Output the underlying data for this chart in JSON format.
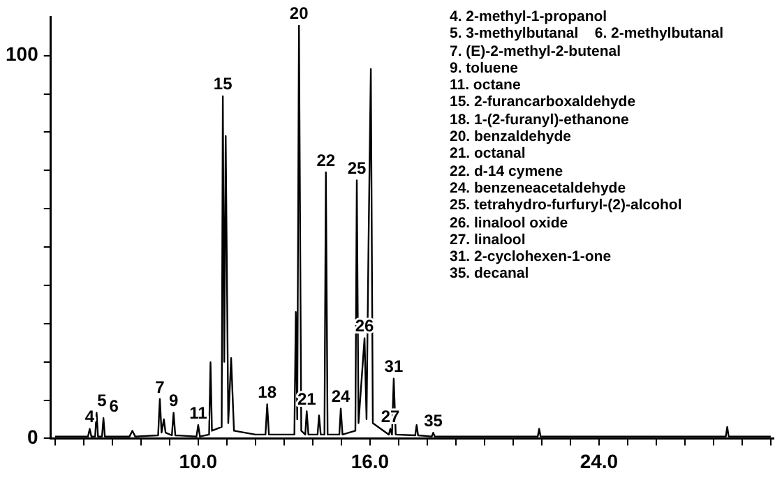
{
  "chart_data": {
    "type": "line",
    "x": [
      5.0,
      6.15,
      6.21,
      6.27,
      6.4,
      6.45,
      6.5,
      6.64,
      6.69,
      6.74,
      7.6,
      7.7,
      7.8,
      8.6,
      8.66,
      8.72,
      8.8,
      8.86,
      9.08,
      9.14,
      9.2,
      9.94,
      10.0,
      10.06,
      10.38,
      10.43,
      10.48,
      10.82,
      10.86,
      10.91,
      10.96,
      11.05,
      11.15,
      11.25,
      12.0,
      12.35,
      12.41,
      12.47,
      13.36,
      13.41,
      13.46,
      13.52,
      13.6,
      13.74,
      13.79,
      13.85,
      14.17,
      14.22,
      14.28,
      14.41,
      14.46,
      14.52,
      14.93,
      14.98,
      15.04,
      15.49,
      15.54,
      15.6,
      15.81,
      15.88,
      15.95,
      16.03,
      16.1,
      16.66,
      16.71,
      16.77,
      16.83,
      16.9,
      17.58,
      17.63,
      17.68,
      18.16,
      18.21,
      18.26,
      21.86,
      21.91,
      21.96,
      28.43,
      28.48,
      28.53,
      30.0
    ],
    "series": [
      {
        "color": "#000000",
        "values": [
          0.5,
          0.5,
          2.5,
          0.5,
          0.5,
          6.7,
          0.5,
          0.5,
          5.3,
          0.5,
          0.5,
          2,
          0.5,
          0.8,
          10.3,
          1.5,
          5,
          1.5,
          0.8,
          6.7,
          0.8,
          0.5,
          3.5,
          0.5,
          1,
          19.9,
          2,
          3,
          89.4,
          20,
          79,
          4,
          21,
          2,
          1,
          1,
          8.9,
          1,
          1,
          33,
          5,
          107.8,
          2,
          1,
          7.1,
          1,
          1,
          6,
          1,
          1,
          69.5,
          1,
          1,
          7.8,
          1,
          2,
          67.4,
          4,
          26.2,
          5,
          51,
          96.5,
          4,
          1,
          2.5,
          1,
          15.6,
          1,
          0.8,
          3.5,
          0.8,
          0.5,
          1.5,
          0.5,
          0.5,
          2.5,
          0.5,
          0.5,
          3,
          0.5,
          0.5
        ]
      }
    ],
    "xlim": [
      4.85,
      30.1
    ],
    "xticks": [
      {
        "value": 5,
        "label": null
      },
      {
        "value": 6,
        "label": null
      },
      {
        "value": 7,
        "label": null
      },
      {
        "value": 8,
        "label": null
      },
      {
        "value": 9,
        "label": null
      },
      {
        "value": 10,
        "label": "10.0"
      },
      {
        "value": 11,
        "label": null
      },
      {
        "value": 12,
        "label": null
      },
      {
        "value": 13,
        "label": null
      },
      {
        "value": 14,
        "label": null
      },
      {
        "value": 15,
        "label": null
      },
      {
        "value": 16,
        "label": "16.0"
      },
      {
        "value": 17,
        "label": null
      },
      {
        "value": 18,
        "label": null
      },
      {
        "value": 19,
        "label": null
      },
      {
        "value": 20,
        "label": null
      },
      {
        "value": 21,
        "label": null
      },
      {
        "value": 22,
        "label": null
      },
      {
        "value": 23,
        "label": null
      },
      {
        "value": 24,
        "label": "24.0"
      },
      {
        "value": 25,
        "label": null
      },
      {
        "value": 26,
        "label": null
      },
      {
        "value": 27,
        "label": null
      },
      {
        "value": 28,
        "label": null
      },
      {
        "value": 29,
        "label": null
      },
      {
        "value": 30,
        "label": null
      }
    ],
    "ylim": [
      0,
      110
    ],
    "yticks": [
      0,
      {
        "value": 10,
        "label": null
      },
      {
        "value": 20,
        "label": null
      },
      {
        "value": 30,
        "label": null
      },
      {
        "value": 40,
        "label": null
      },
      {
        "value": 50,
        "label": null
      },
      {
        "value": 60,
        "label": null
      },
      {
        "value": 70,
        "label": null
      },
      {
        "value": 80,
        "label": null
      },
      {
        "value": 90,
        "label": null
      },
      100
    ],
    "grid": false,
    "legend": false,
    "marker": "none",
    "line_style": "solid",
    "annotations": [
      {
        "text": "4",
        "x": 6.21,
        "y": 2.5
      },
      {
        "text": "5",
        "x": 6.45,
        "y": 6.7
      },
      {
        "text": "6",
        "x": 6.69,
        "y": 5.3
      },
      {
        "text": "7",
        "x": 8.66,
        "y": 10.3
      },
      {
        "text": "9",
        "x": 9.14,
        "y": 6.7
      },
      {
        "text": "11",
        "x": 10.0,
        "y": 3.5
      },
      {
        "text": "15",
        "x": 10.86,
        "y": 89.4
      },
      {
        "text": "18",
        "x": 12.41,
        "y": 8.9
      },
      {
        "text": "20",
        "x": 13.52,
        "y": 107.8
      },
      {
        "text": "21",
        "x": 13.79,
        "y": 7.1
      },
      {
        "text": "22",
        "x": 14.46,
        "y": 69.5
      },
      {
        "text": "24",
        "x": 14.98,
        "y": 7.8
      },
      {
        "text": "25",
        "x": 15.54,
        "y": 67.4
      },
      {
        "text": "26",
        "x": 15.81,
        "y": 26.2
      },
      {
        "text": "27",
        "x": 16.71,
        "y": 2.5
      },
      {
        "text": "31",
        "x": 16.83,
        "y": 15.6
      },
      {
        "text": "35",
        "x": 18.21,
        "y": 1.5
      },
      "4. 2-methyl-1-propanol",
      "5. 3-methylbutanal    6. 2-methylbutanal",
      "7. (E)-2-methyl-2-butenal",
      "9. toluene",
      "11. octane",
      "15. 2-furancarboxaldehyde",
      "18. 1-(2-furanyl)-ethanone",
      "20. benzaldehyde",
      "21. octanal",
      "22. d-14 cymene",
      "24. benzeneacetaldehyde",
      "25. tetrahydro-furfuryl-(2)-alcohol",
      "26. linalool oxide",
      "27. linalool",
      "31. 2-cyclohexen-1-one",
      "35. decanal"
    ]
  }
}
